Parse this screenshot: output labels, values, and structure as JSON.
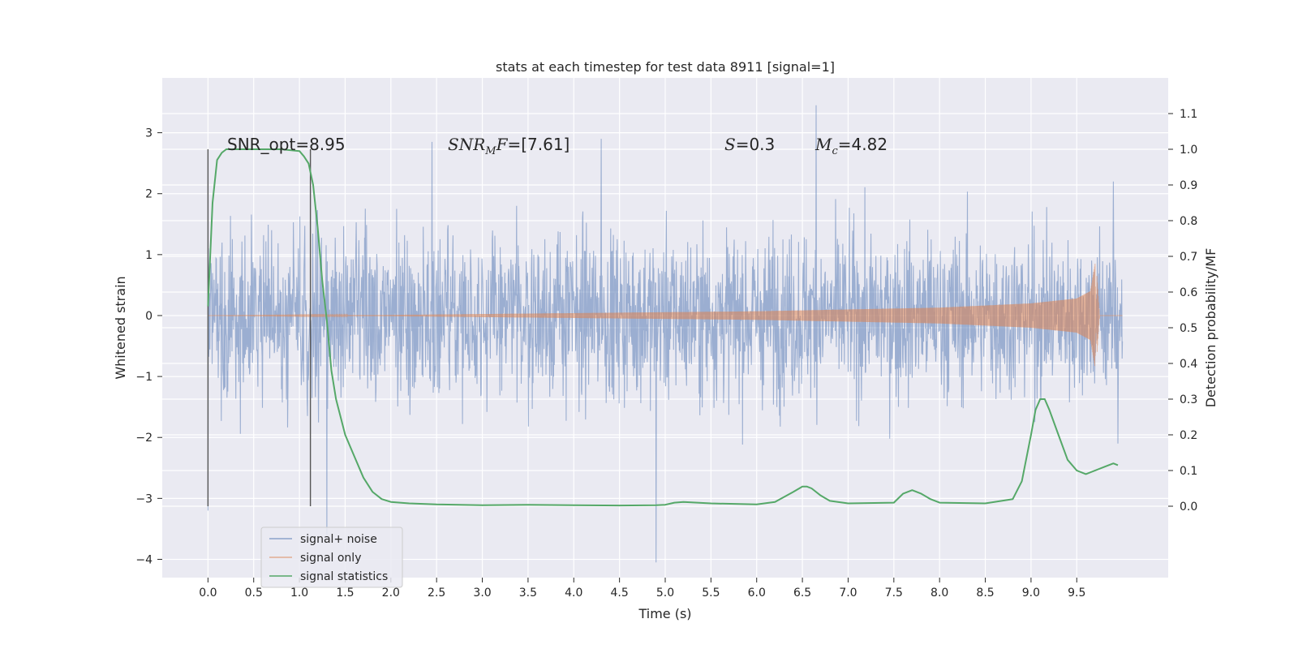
{
  "chart_data": {
    "type": "line",
    "title": "stats at each timestep for test data 8911 [signal=1]",
    "xlabel": "Time (s)",
    "ylabel": "Whitened strain",
    "y2label": "Detection probability/MF",
    "xlim": [
      -0.5,
      10.5
    ],
    "ylim": [
      -4.3,
      3.9
    ],
    "y2lim": [
      -0.2,
      1.2
    ],
    "xticks": [
      "0.0",
      "0.5",
      "1.0",
      "1.5",
      "2.0",
      "2.5",
      "3.0",
      "3.5",
      "4.0",
      "4.5",
      "5.0",
      "5.5",
      "6.0",
      "6.5",
      "7.0",
      "7.5",
      "8.0",
      "8.5",
      "9.0",
      "9.5"
    ],
    "yticks": [
      "3",
      "2",
      "1",
      "0",
      "−1",
      "−2",
      "−3",
      "−4"
    ],
    "y2ticks": [
      "1.1",
      "1.0",
      "0.9",
      "0.8",
      "0.7",
      "0.6",
      "0.5",
      "0.4",
      "0.3",
      "0.2",
      "0.1",
      "0.0"
    ],
    "grid": true,
    "legend_position": "lower-left",
    "annotations": {
      "snr_opt": "SNR_opt=8.95",
      "snr_mf_var": "SNR",
      "snr_mf_sub": "M",
      "snr_mf_var2": "F",
      "snr_mf_value": "=[7.61]",
      "s_var": "S",
      "s_value": "=0.3",
      "mc_var": "M",
      "mc_sub": "c",
      "mc_value": "=4.82"
    },
    "vertical_lines_x": [
      0.0,
      1.12
    ],
    "series": [
      {
        "name": "signal+ noise",
        "color": "#4c72b0",
        "x_range": [
          0.0,
          10.0
        ],
        "envelope_min": -1.5,
        "envelope_max": 1.5,
        "extremes": [
          [
            0.0,
            -3.2
          ],
          [
            1.3,
            -3.6
          ],
          [
            4.9,
            -4.05
          ],
          [
            6.65,
            3.45
          ],
          [
            2.45,
            2.85
          ],
          [
            4.3,
            2.9
          ],
          [
            9.9,
            2.2
          ],
          [
            9.95,
            -2.1
          ]
        ]
      },
      {
        "name": "signal only",
        "color": "#dd8452",
        "x_range": [
          0.0,
          10.0
        ],
        "amplitude": [
          [
            0.0,
            0.0
          ],
          [
            2.0,
            0.01
          ],
          [
            4.0,
            0.04
          ],
          [
            6.0,
            0.07
          ],
          [
            8.0,
            0.13
          ],
          [
            9.0,
            0.2
          ],
          [
            9.5,
            0.28
          ],
          [
            9.65,
            0.4
          ],
          [
            9.7,
            0.85
          ],
          [
            9.72,
            -0.65
          ],
          [
            9.75,
            0.0
          ]
        ]
      },
      {
        "name": "signal statistics",
        "color": "#55a868",
        "axis": "right",
        "x": [
          0.0,
          0.05,
          0.1,
          0.15,
          0.2,
          0.3,
          0.5,
          0.8,
          1.0,
          1.05,
          1.1,
          1.15,
          1.2,
          1.25,
          1.3,
          1.35,
          1.4,
          1.5,
          1.6,
          1.7,
          1.8,
          1.9,
          2.0,
          2.2,
          2.5,
          3.0,
          3.5,
          4.0,
          4.5,
          4.9,
          5.0,
          5.1,
          5.2,
          5.5,
          6.0,
          6.2,
          6.4,
          6.5,
          6.55,
          6.6,
          6.7,
          6.8,
          7.0,
          7.5,
          7.6,
          7.7,
          7.8,
          7.9,
          8.0,
          8.5,
          8.8,
          8.9,
          9.0,
          9.05,
          9.1,
          9.15,
          9.2,
          9.3,
          9.4,
          9.5,
          9.6,
          9.7,
          9.8,
          9.9,
          9.95
        ],
        "values": [
          0.56,
          0.85,
          0.97,
          0.99,
          1.0,
          1.0,
          1.0,
          1.0,
          0.995,
          0.98,
          0.96,
          0.9,
          0.78,
          0.63,
          0.52,
          0.38,
          0.3,
          0.2,
          0.14,
          0.08,
          0.04,
          0.02,
          0.012,
          0.008,
          0.005,
          0.003,
          0.004,
          0.003,
          0.002,
          0.003,
          0.004,
          0.01,
          0.012,
          0.008,
          0.005,
          0.012,
          0.04,
          0.055,
          0.055,
          0.05,
          0.03,
          0.015,
          0.008,
          0.01,
          0.035,
          0.045,
          0.035,
          0.02,
          0.01,
          0.008,
          0.02,
          0.07,
          0.2,
          0.27,
          0.3,
          0.3,
          0.27,
          0.2,
          0.13,
          0.1,
          0.09,
          0.1,
          0.11,
          0.12,
          0.115
        ]
      }
    ]
  }
}
